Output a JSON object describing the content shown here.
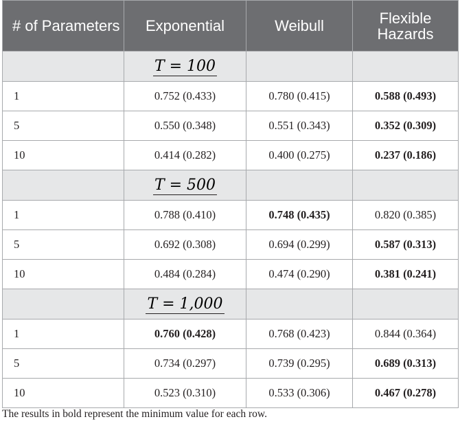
{
  "table": {
    "headers": [
      "# of Parameters",
      "Exponential",
      "Weibull",
      "Flexible Hazards"
    ],
    "sections": [
      {
        "label": "T = 100",
        "rows": [
          {
            "params": "1",
            "cells": [
              {
                "text": "0.752 (0.433)",
                "bold": false
              },
              {
                "text": "0.780 (0.415)",
                "bold": false
              },
              {
                "text": "0.588 (0.493)",
                "bold": true
              }
            ]
          },
          {
            "params": "5",
            "cells": [
              {
                "text": "0.550 (0.348)",
                "bold": false
              },
              {
                "text": "0.551 (0.343)",
                "bold": false
              },
              {
                "text": "0.352 (0.309)",
                "bold": true
              }
            ]
          },
          {
            "params": "10",
            "cells": [
              {
                "text": "0.414 (0.282)",
                "bold": false
              },
              {
                "text": "0.400 (0.275)",
                "bold": false
              },
              {
                "text": "0.237 (0.186)",
                "bold": true
              }
            ]
          }
        ]
      },
      {
        "label": "T = 500",
        "rows": [
          {
            "params": "1",
            "cells": [
              {
                "text": "0.788 (0.410)",
                "bold": false
              },
              {
                "text": "0.748 (0.435)",
                "bold": true
              },
              {
                "text": "0.820 (0.385)",
                "bold": false
              }
            ]
          },
          {
            "params": "5",
            "cells": [
              {
                "text": "0.692 (0.308)",
                "bold": false
              },
              {
                "text": "0.694 (0.299)",
                "bold": false
              },
              {
                "text": "0.587 (0.313)",
                "bold": true
              }
            ]
          },
          {
            "params": "10",
            "cells": [
              {
                "text": "0.484 (0.284)",
                "bold": false
              },
              {
                "text": "0.474 (0.290)",
                "bold": false
              },
              {
                "text": "0.381 (0.241)",
                "bold": true
              }
            ]
          }
        ]
      },
      {
        "label": "T = 1,000",
        "rows": [
          {
            "params": "1",
            "cells": [
              {
                "text": "0.760 (0.428)",
                "bold": true
              },
              {
                "text": "0.768 (0.423)",
                "bold": false
              },
              {
                "text": "0.844 (0.364)",
                "bold": false
              }
            ]
          },
          {
            "params": "5",
            "cells": [
              {
                "text": "0.734 (0.297)",
                "bold": false
              },
              {
                "text": "0.739 (0.295)",
                "bold": false
              },
              {
                "text": "0.689 (0.313)",
                "bold": true
              }
            ]
          },
          {
            "params": "10",
            "cells": [
              {
                "text": "0.523 (0.310)",
                "bold": false
              },
              {
                "text": "0.533 (0.306)",
                "bold": false
              },
              {
                "text": "0.467 (0.278)",
                "bold": true
              }
            ]
          }
        ]
      }
    ]
  },
  "footnote": "The results in bold represent the minimum value for each row.",
  "colors": {
    "header_bg": "#6d6e71",
    "section_bg": "#e6e7e8",
    "border": "#a7a9ac",
    "text": "#231f20"
  }
}
